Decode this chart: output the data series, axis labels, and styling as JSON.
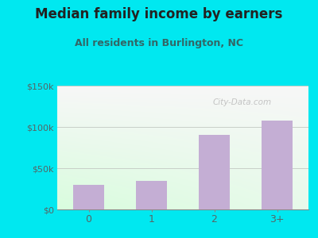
{
  "title": "Median family income by earners",
  "subtitle": "All residents in Burlington, NC",
  "categories": [
    "0",
    "1",
    "2",
    "3+"
  ],
  "values": [
    30000,
    35000,
    90000,
    108000
  ],
  "bar_color": "#c4aed4",
  "ylim": [
    0,
    150000
  ],
  "yticks": [
    0,
    50000,
    100000,
    150000
  ],
  "ytick_labels": [
    "$0",
    "$50k",
    "$100k",
    "$150k"
  ],
  "bg_outer": "#00e8f0",
  "title_color": "#222222",
  "subtitle_color": "#336666",
  "title_fontsize": 12,
  "subtitle_fontsize": 9,
  "watermark": "City-Data.com",
  "tick_color": "#556666",
  "grid_color": "#c8cfc8"
}
